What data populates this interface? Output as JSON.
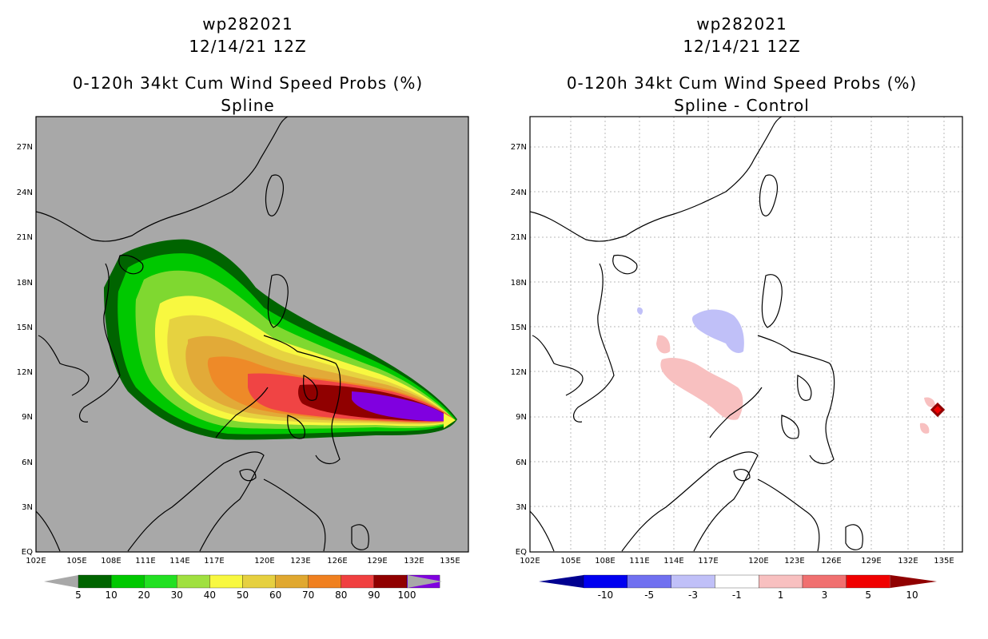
{
  "left": {
    "title_line1": "wp282021",
    "title_line2": "12/14/21 12Z",
    "title_line3": "0-120h 34kt Cum Wind Speed Probs (%)",
    "title_line4": "Spline"
  },
  "right": {
    "title_line1": "wp282021",
    "title_line2": "12/14/21 12Z",
    "title_line3": "0-120h 34kt Cum Wind Speed Probs (%)",
    "title_line4": "Spline - Control"
  },
  "lat_ticks": [
    "27N",
    "24N",
    "21N",
    "18N",
    "15N",
    "12N",
    "9N",
    "6N",
    "3N",
    "EQ"
  ],
  "lon_ticks": [
    "102E",
    "105E",
    "108E",
    "111E",
    "114E",
    "117E",
    "120E",
    "123E",
    "126E",
    "129E",
    "132E",
    "135E"
  ],
  "left_colorbar": {
    "labels": [
      "5",
      "10",
      "20",
      "30",
      "40",
      "50",
      "60",
      "70",
      "80",
      "90",
      "100"
    ],
    "colors": [
      "#006400",
      "#00c800",
      "#22e022",
      "#a0e040",
      "#f8f840",
      "#e6d040",
      "#e0a830",
      "#f08020",
      "#f04040",
      "#900000",
      "#8000e0"
    ]
  },
  "right_colorbar": {
    "labels": [
      "-10",
      "-5",
      "-3",
      "-1",
      "1",
      "3",
      "5",
      "10"
    ],
    "colors": [
      "#000090",
      "#0000f0",
      "#7070f0",
      "#c0c0f8",
      "#ffffff",
      "#f8c0c0",
      "#f07070",
      "#f00000",
      "#900000"
    ]
  },
  "map_colors": {
    "background_left": "#a8a8a8",
    "background_right": "#ffffff",
    "coast": "#000000",
    "grid": "#b0b0b0"
  }
}
